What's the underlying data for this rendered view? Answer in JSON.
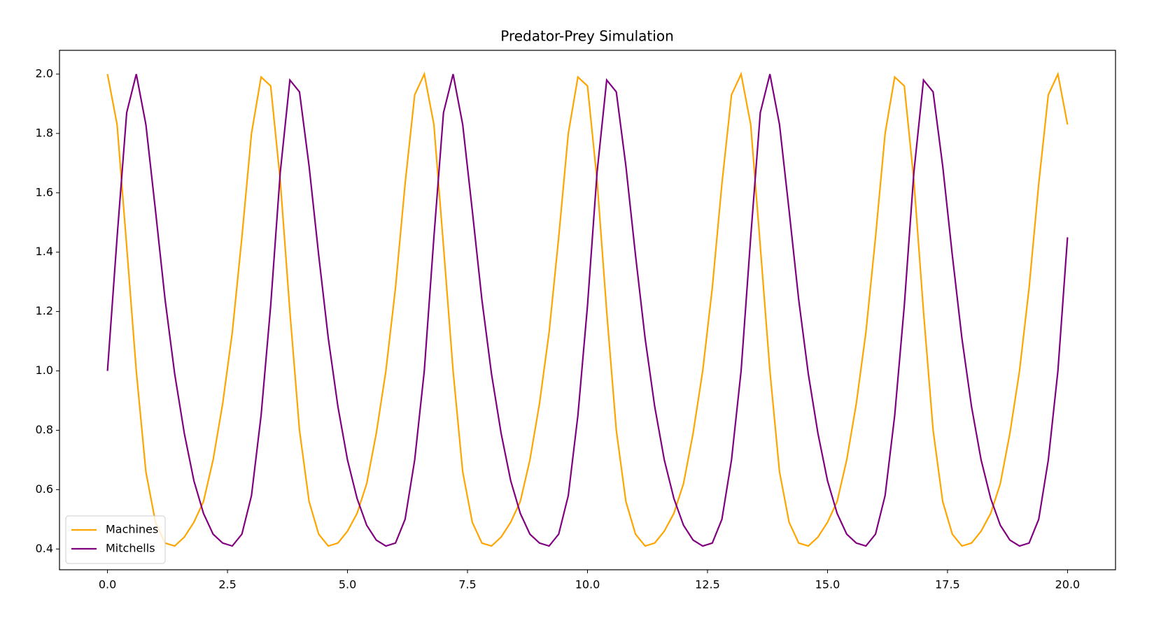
{
  "chart_data": {
    "type": "line",
    "title": "Predator-Prey Simulation",
    "x": [
      0,
      0.2,
      0.4,
      0.6,
      0.8,
      1,
      1.2,
      1.4,
      1.6,
      1.8,
      2,
      2.2,
      2.4,
      2.6,
      2.8,
      3,
      3.2,
      3.4,
      3.6,
      3.8,
      4,
      4.2,
      4.4,
      4.6,
      4.8,
      5,
      5.2,
      5.4,
      5.6,
      5.8,
      6,
      6.2,
      6.4,
      6.6,
      6.8,
      7,
      7.2,
      7.4,
      7.6,
      7.8,
      8,
      8.2,
      8.4,
      8.6,
      8.8,
      9,
      9.2,
      9.4,
      9.6,
      9.8,
      10,
      10.2,
      10.4,
      10.6,
      10.8,
      11,
      11.2,
      11.4,
      11.6,
      11.8,
      12,
      12.2,
      12.4,
      12.6,
      12.8,
      13,
      13.2,
      13.4,
      13.6,
      13.8,
      14,
      14.2,
      14.4,
      14.6,
      14.8,
      15,
      15.2,
      15.4,
      15.6,
      15.8,
      16,
      16.2,
      16.4,
      16.6,
      16.8,
      17,
      17.2,
      17.4,
      17.6,
      17.8,
      18,
      18.2,
      18.4,
      18.6,
      18.8,
      19,
      19.2,
      19.4,
      19.6,
      19.8,
      20
    ],
    "series": [
      {
        "name": "Machines",
        "color": "#ffa500",
        "values": [
          2.0,
          1.83,
          1.42,
          1.0,
          0.66,
          0.49,
          0.42,
          0.41,
          0.44,
          0.49,
          0.56,
          0.7,
          0.89,
          1.13,
          1.45,
          1.8,
          1.99,
          1.96,
          1.64,
          1.2,
          0.8,
          0.56,
          0.45,
          0.41,
          0.42,
          0.46,
          0.52,
          0.62,
          0.79,
          1.0,
          1.28,
          1.63,
          1.93,
          2.0,
          1.83,
          1.42,
          1.0,
          0.66,
          0.49,
          0.42,
          0.41,
          0.44,
          0.49,
          0.56,
          0.7,
          0.89,
          1.13,
          1.45,
          1.8,
          1.99,
          1.96,
          1.64,
          1.2,
          0.8,
          0.56,
          0.45,
          0.41,
          0.42,
          0.46,
          0.52,
          0.62,
          0.79,
          1.0,
          1.28,
          1.63,
          1.93,
          2.0,
          1.83,
          1.42,
          1.0,
          0.66,
          0.49,
          0.42,
          0.41,
          0.44,
          0.49,
          0.56,
          0.7,
          0.89,
          1.13,
          1.45,
          1.8,
          1.99,
          1.96,
          1.64,
          1.2,
          0.8,
          0.56,
          0.45,
          0.41,
          0.42,
          0.46,
          0.52,
          0.62,
          0.79,
          1.0,
          1.28,
          1.63,
          1.93,
          2.0,
          1.83
        ]
      },
      {
        "name": "Mitchells",
        "color": "#800080",
        "values": [
          1.0,
          1.45,
          1.87,
          2.0,
          1.83,
          1.54,
          1.24,
          0.99,
          0.79,
          0.63,
          0.52,
          0.45,
          0.42,
          0.41,
          0.45,
          0.58,
          0.85,
          1.22,
          1.67,
          1.98,
          1.94,
          1.69,
          1.39,
          1.11,
          0.88,
          0.7,
          0.57,
          0.48,
          0.43,
          0.41,
          0.42,
          0.5,
          0.7,
          1.0,
          1.45,
          1.87,
          2.0,
          1.83,
          1.54,
          1.24,
          0.99,
          0.79,
          0.63,
          0.52,
          0.45,
          0.42,
          0.41,
          0.45,
          0.58,
          0.85,
          1.22,
          1.67,
          1.98,
          1.94,
          1.69,
          1.39,
          1.11,
          0.88,
          0.7,
          0.57,
          0.48,
          0.43,
          0.41,
          0.42,
          0.5,
          0.7,
          1.0,
          1.45,
          1.87,
          2.0,
          1.83,
          1.54,
          1.24,
          0.99,
          0.79,
          0.63,
          0.52,
          0.45,
          0.42,
          0.41,
          0.45,
          0.58,
          0.85,
          1.22,
          1.67,
          1.98,
          1.94,
          1.69,
          1.39,
          1.11,
          0.88,
          0.7,
          0.57,
          0.48,
          0.43,
          0.41,
          0.42,
          0.5,
          0.7,
          1.0,
          1.45
        ]
      }
    ],
    "xlim": [
      -1.0,
      21.0
    ],
    "ylim": [
      0.33,
      2.08
    ],
    "xticks": [
      {
        "value": 0,
        "label": "0.0"
      },
      2.5,
      {
        "value": 5,
        "label": "5.0"
      },
      7.5,
      {
        "value": 10,
        "label": "10.0"
      },
      12.5,
      {
        "value": 15,
        "label": "15.0"
      },
      17.5,
      {
        "value": 20,
        "label": "20.0"
      }
    ],
    "yticks": [
      0.4,
      0.6,
      0.8,
      {
        "value": 1,
        "label": "1.0"
      },
      1.2,
      1.4,
      1.6,
      1.8,
      {
        "value": 2,
        "label": "2.0"
      }
    ],
    "grid": false,
    "legend": "lower left"
  }
}
